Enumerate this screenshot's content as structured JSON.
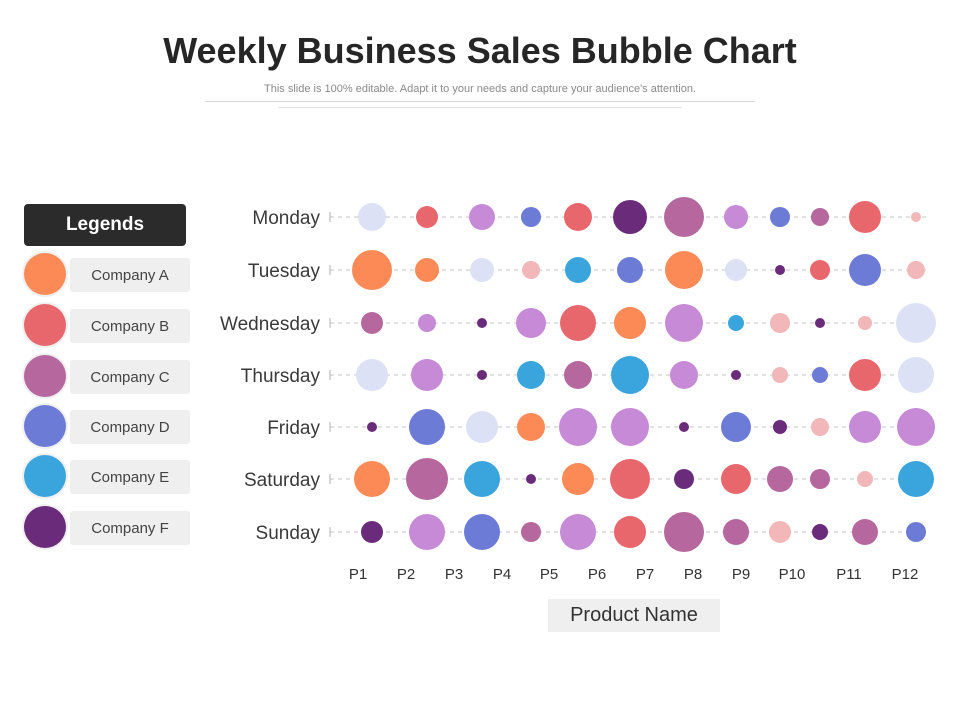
{
  "title": "Weekly Business Sales Bubble Chart",
  "subtitle": "This slide is 100% editable. Adapt it to your needs and capture your audience's attention.",
  "legend": {
    "header": "Legends",
    "items": [
      {
        "label": "Company A",
        "color": "#FC8A57"
      },
      {
        "label": "Company B",
        "color": "#E8676D"
      },
      {
        "label": "Company C",
        "color": "#B5679E"
      },
      {
        "label": "Company D",
        "color": "#6B7BD6"
      },
      {
        "label": "Company E",
        "color": "#3AA5DD"
      },
      {
        "label": "Company F",
        "color": "#6A2C7A"
      }
    ]
  },
  "chart_data": {
    "type": "scatter",
    "xlabel": "Product Name",
    "ylabel": "",
    "title": "Weekly Business Sales Bubble Chart",
    "x_categories": [
      "P1",
      "P2",
      "P3",
      "P4",
      "P5",
      "P6",
      "P7",
      "P8",
      "P9",
      "P10",
      "P11",
      "P12"
    ],
    "y_categories": [
      "Monday",
      "Tuesday",
      "Wednesday",
      "Thursday",
      "Friday",
      "Saturday",
      "Sunday"
    ],
    "palette": {
      "A": "#FC8A57",
      "B": "#E8676D",
      "C": "#B5679E",
      "D": "#6B7BD6",
      "E": "#3AA5DD",
      "F": "#6A2C7A",
      "lavender": "#DDE1F5",
      "pink": "#F2B7B9",
      "orchid": "#C68AD6"
    },
    "bubbles": [
      [
        [
          "lavender",
          14
        ],
        [
          "B",
          11
        ],
        [
          "orchid",
          13
        ],
        [
          "D",
          10
        ],
        [
          "B",
          14
        ],
        [
          "F",
          17
        ],
        [
          "C",
          20
        ],
        [
          "orchid",
          12
        ],
        [
          "D",
          10
        ],
        [
          "C",
          9
        ],
        [
          "B",
          16
        ],
        [
          "pink",
          5
        ]
      ],
      [
        [
          "A",
          20
        ],
        [
          "A",
          12
        ],
        [
          "lavender",
          12
        ],
        [
          "pink",
          9
        ],
        [
          "E",
          13
        ],
        [
          "D",
          13
        ],
        [
          "A",
          19
        ],
        [
          "lavender",
          11
        ],
        [
          "F",
          5
        ],
        [
          "B",
          10
        ],
        [
          "D",
          16
        ],
        [
          "pink",
          9
        ]
      ],
      [
        [
          "C",
          11
        ],
        [
          "orchid",
          9
        ],
        [
          "F",
          5
        ],
        [
          "orchid",
          15
        ],
        [
          "B",
          18
        ],
        [
          "A",
          16
        ],
        [
          "orchid",
          19
        ],
        [
          "E",
          8
        ],
        [
          "pink",
          10
        ],
        [
          "F",
          5
        ],
        [
          "pink",
          7
        ],
        [
          "lavender",
          20
        ]
      ],
      [
        [
          "lavender",
          16
        ],
        [
          "orchid",
          16
        ],
        [
          "F",
          5
        ],
        [
          "E",
          14
        ],
        [
          "C",
          14
        ],
        [
          "E",
          19
        ],
        [
          "orchid",
          14
        ],
        [
          "F",
          5
        ],
        [
          "pink",
          8
        ],
        [
          "D",
          8
        ],
        [
          "B",
          16
        ],
        [
          "lavender",
          18
        ]
      ],
      [
        [
          "F",
          5
        ],
        [
          "D",
          18
        ],
        [
          "lavender",
          16
        ],
        [
          "A",
          14
        ],
        [
          "orchid",
          19
        ],
        [
          "orchid",
          19
        ],
        [
          "F",
          5
        ],
        [
          "D",
          15
        ],
        [
          "F",
          7
        ],
        [
          "pink",
          9
        ],
        [
          "orchid",
          16
        ],
        [
          "orchid",
          19
        ]
      ],
      [
        [
          "A",
          18
        ],
        [
          "C",
          21
        ],
        [
          "E",
          18
        ],
        [
          "F",
          5
        ],
        [
          "A",
          16
        ],
        [
          "B",
          20
        ],
        [
          "F",
          10
        ],
        [
          "B",
          15
        ],
        [
          "C",
          13
        ],
        [
          "C",
          10
        ],
        [
          "pink",
          8
        ],
        [
          "E",
          18
        ]
      ],
      [
        [
          "F",
          11
        ],
        [
          "orchid",
          18
        ],
        [
          "D",
          18
        ],
        [
          "C",
          10
        ],
        [
          "orchid",
          18
        ],
        [
          "B",
          16
        ],
        [
          "C",
          20
        ],
        [
          "C",
          13
        ],
        [
          "pink",
          11
        ],
        [
          "F",
          8
        ],
        [
          "C",
          13
        ],
        [
          "D",
          10
        ]
      ]
    ]
  }
}
